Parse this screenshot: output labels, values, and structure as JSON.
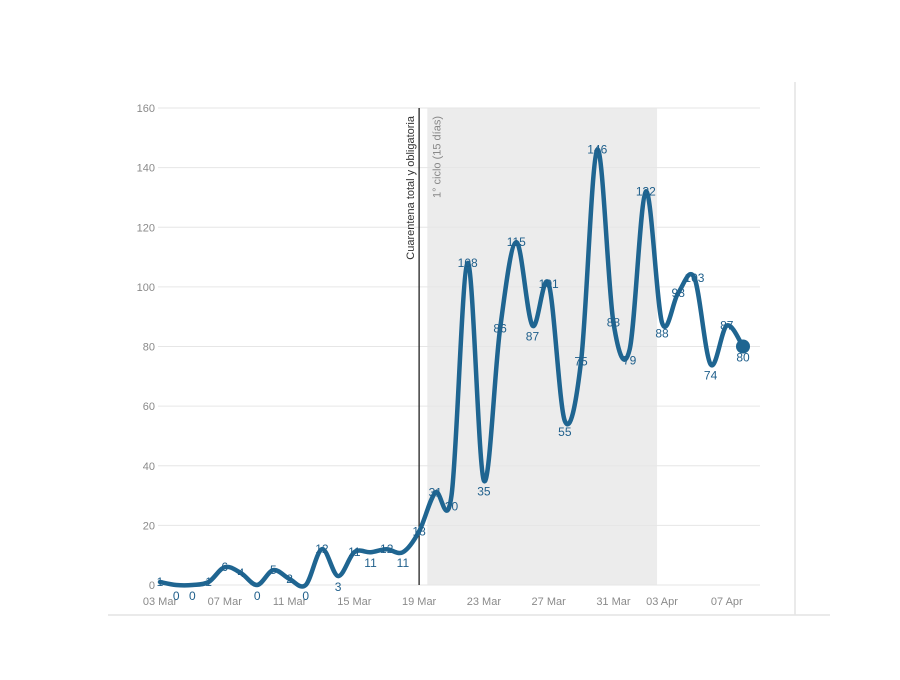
{
  "colors": {
    "line": "#1f6591",
    "label": "#1f5f8b",
    "shade": "#ececec",
    "grid": "#e6e6e6",
    "axis_text": "#8a8a8a"
  },
  "chart_data": {
    "type": "line",
    "title": "",
    "xlabel": "",
    "ylabel": "",
    "ylim": [
      0,
      160
    ],
    "yticks": [
      0,
      20,
      40,
      60,
      80,
      100,
      120,
      140,
      160
    ],
    "grid": true,
    "x": [
      "03 Mar",
      "04 Mar",
      "05 Mar",
      "06 Mar",
      "07 Mar",
      "08 Mar",
      "09 Mar",
      "10 Mar",
      "11 Mar",
      "12 Mar",
      "13 Mar",
      "14 Mar",
      "15 Mar",
      "16 Mar",
      "17 Mar",
      "18 Mar",
      "19 Mar",
      "20 Mar",
      "21 Mar",
      "22 Mar",
      "23 Mar",
      "24 Mar",
      "25 Mar",
      "26 Mar",
      "27 Mar",
      "28 Mar",
      "29 Mar",
      "30 Mar",
      "31 Mar",
      "01 Apr",
      "02 Apr",
      "03 Apr",
      "04 Apr",
      "05 Apr",
      "06 Apr",
      "07 Apr",
      "08 Apr"
    ],
    "xtick_labels": [
      {
        "x": "03 Mar",
        "label": "03 Mar"
      },
      {
        "x": "07 Mar",
        "label": "07 Mar"
      },
      {
        "x": "11 Mar",
        "label": "11 Mar"
      },
      {
        "x": "15 Mar",
        "label": "15 Mar"
      },
      {
        "x": "19 Mar",
        "label": "19 Mar"
      },
      {
        "x": "23 Mar",
        "label": "23 Mar"
      },
      {
        "x": "27 Mar",
        "label": "27 Mar"
      },
      {
        "x": "31 Mar",
        "label": "31 Mar"
      },
      {
        "x": "03 Apr",
        "label": "03 Apr"
      },
      {
        "x": "07 Apr",
        "label": "07 Apr"
      }
    ],
    "series": [
      {
        "values": [
          1,
          0,
          0,
          1,
          6,
          4,
          0,
          5,
          2,
          0,
          12,
          3,
          11,
          11,
          12,
          11,
          18,
          31,
          30,
          108,
          35,
          86,
          115,
          87,
          101,
          55,
          75,
          146,
          88,
          79,
          132,
          88,
          98,
          103,
          74,
          87,
          80
        ]
      }
    ],
    "annotations": {
      "vertical_line": {
        "x": "19 Mar",
        "label": "Cuarentena total y obligatoria"
      },
      "shaded_region": {
        "from": "20 Mar",
        "to": "03 Apr",
        "label": "1° ciclo (15 días)"
      }
    }
  }
}
